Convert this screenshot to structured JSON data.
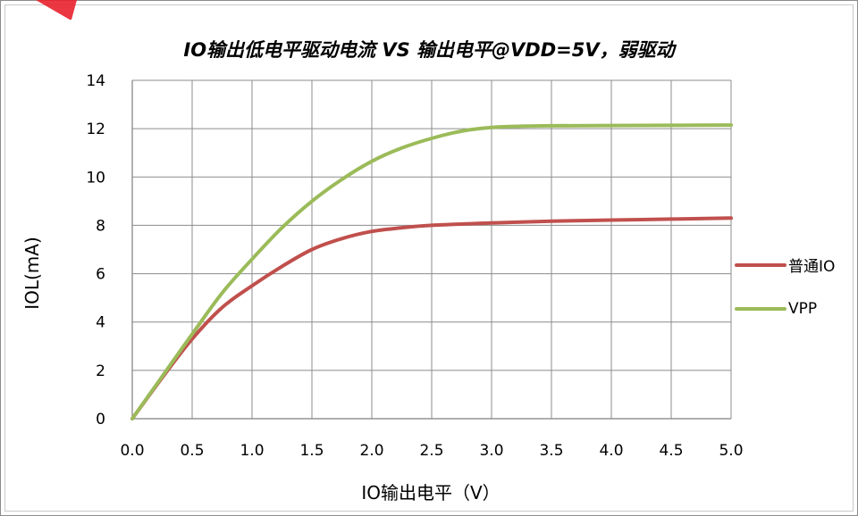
{
  "chart_data": {
    "type": "line",
    "title": "IO输出低电平驱动电流 VS 输出电平@VDD=5V，弱驱动",
    "xlabel": "IO输出电平（V）",
    "ylabel": "IOL(mA)",
    "xlim": [
      0,
      5
    ],
    "ylim": [
      0,
      14
    ],
    "x_ticks": [
      "0.0",
      "0.5",
      "1.0",
      "1.5",
      "2.0",
      "2.5",
      "3.0",
      "3.5",
      "4.0",
      "4.5",
      "5.0"
    ],
    "y_ticks": [
      "0",
      "2",
      "4",
      "6",
      "8",
      "10",
      "12",
      "14"
    ],
    "grid": true,
    "legend_position": "right",
    "series": [
      {
        "name": "普通IO",
        "color": "#c0504d",
        "x": [
          0,
          0.25,
          0.5,
          0.75,
          1.0,
          1.25,
          1.5,
          1.75,
          2.0,
          2.25,
          2.5,
          3.0,
          3.5,
          4.0,
          4.5,
          5.0
        ],
        "y": [
          0,
          1.7,
          3.3,
          4.6,
          5.5,
          6.3,
          7.0,
          7.45,
          7.75,
          7.9,
          8.0,
          8.1,
          8.17,
          8.22,
          8.26,
          8.3
        ]
      },
      {
        "name": "VPP",
        "color": "#9bbb59",
        "x": [
          0,
          0.25,
          0.5,
          0.75,
          1.0,
          1.25,
          1.5,
          1.75,
          2.0,
          2.25,
          2.5,
          2.75,
          3.0,
          3.25,
          3.5,
          4.0,
          4.5,
          5.0
        ],
        "y": [
          0,
          1.75,
          3.5,
          5.2,
          6.6,
          7.9,
          9.0,
          9.9,
          10.65,
          11.2,
          11.6,
          11.9,
          12.05,
          12.1,
          12.12,
          12.13,
          12.14,
          12.15
        ]
      }
    ]
  },
  "logo": {
    "color": "#e8212e"
  }
}
